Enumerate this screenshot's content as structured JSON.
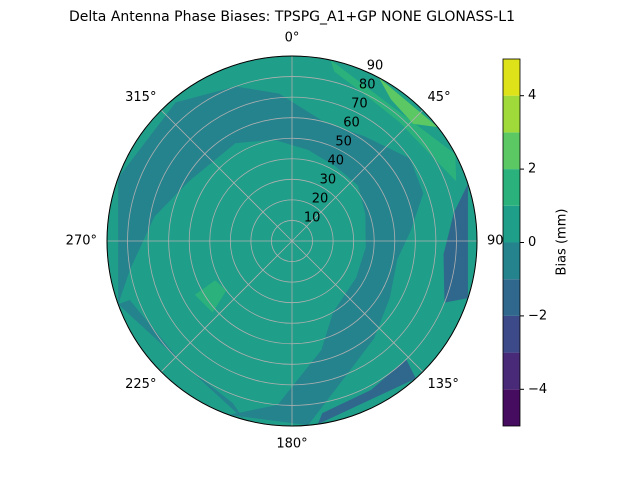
{
  "chart_data": {
    "type": "polar-contour",
    "title": "Delta Antenna Phase Biases: TPSPG_A1+GP     NONE GLONASS-L1",
    "base_level": 0,
    "regions": [
      {
        "level": -1,
        "points": [
          [
            250,
            90
          ],
          [
            290,
            90
          ],
          [
            320,
            88
          ],
          [
            340,
            80
          ],
          [
            355,
            72
          ],
          [
            15,
            60
          ],
          [
            35,
            62
          ],
          [
            55,
            70
          ],
          [
            70,
            68
          ],
          [
            85,
            58
          ],
          [
            100,
            52
          ],
          [
            120,
            55
          ],
          [
            140,
            62
          ],
          [
            160,
            72
          ],
          [
            175,
            90
          ],
          [
            200,
            90
          ],
          [
            185,
            80
          ],
          [
            165,
            55
          ],
          [
            150,
            40
          ],
          [
            120,
            36
          ],
          [
            95,
            36
          ],
          [
            70,
            38
          ],
          [
            50,
            42
          ],
          [
            30,
            42
          ],
          [
            10,
            45
          ],
          [
            350,
            50
          ],
          [
            330,
            55
          ],
          [
            300,
            58
          ],
          [
            280,
            68
          ],
          [
            260,
            80
          ]
        ]
      },
      {
        "level": -1,
        "points": [
          [
            195,
            90
          ],
          [
            250,
            90
          ],
          [
            250,
            84
          ],
          [
            222,
            80
          ],
          [
            200,
            84
          ]
        ]
      },
      {
        "level": -2,
        "points": [
          [
            72,
            90
          ],
          [
            108,
            90
          ],
          [
            112,
            80
          ],
          [
            95,
            74
          ],
          [
            80,
            80
          ]
        ]
      },
      {
        "level": -2,
        "points": [
          [
            138,
            90
          ],
          [
            172,
            90
          ],
          [
            170,
            85
          ],
          [
            152,
            82
          ],
          [
            136,
            80
          ]
        ]
      },
      {
        "level": 1,
        "points": [
          [
            12,
            90
          ],
          [
            62,
            90
          ],
          [
            70,
            85
          ],
          [
            60,
            80
          ],
          [
            42,
            78
          ],
          [
            25,
            80
          ],
          [
            14,
            85
          ]
        ]
      },
      {
        "level": 1,
        "points": [
          [
            228,
            52
          ],
          [
            233,
            40
          ],
          [
            243,
            42
          ],
          [
            241,
            54
          ]
        ]
      },
      {
        "level": 2,
        "points": [
          [
            28,
            90
          ],
          [
            52,
            90
          ],
          [
            46,
            82
          ],
          [
            35,
            84
          ]
        ]
      }
    ],
    "xticks": [
      {
        "value": 0,
        "label": "0°"
      },
      {
        "value": 45,
        "label": "45°"
      },
      {
        "value": 90,
        "label": "90°"
      },
      {
        "value": 135,
        "label": "135°"
      },
      {
        "value": 180,
        "label": "180°"
      },
      {
        "value": 225,
        "label": "225°"
      },
      {
        "value": 270,
        "label": "270°"
      },
      {
        "value": 315,
        "label": "315°"
      }
    ],
    "ylim": [
      0,
      90
    ],
    "yticks": [
      10,
      20,
      30,
      40,
      50,
      60,
      70,
      80,
      90
    ],
    "grid": true,
    "colorbar": {
      "label": "Bias (mm)",
      "lim": [
        -5,
        5
      ],
      "levels": [
        -5,
        -4,
        -3,
        -2,
        -1,
        0,
        1,
        2,
        3,
        4,
        5
      ],
      "colors": [
        "#450c5f",
        "#482a79",
        "#3d4a89",
        "#30678d",
        "#25838e",
        "#1f9e89",
        "#2bb27c",
        "#5cc863",
        "#9fda3a",
        "#dde318"
      ],
      "ticks": [
        {
          "value": -4,
          "label": "−4"
        },
        {
          "value": -2,
          "label": "−2"
        },
        0,
        2,
        4
      ]
    }
  }
}
